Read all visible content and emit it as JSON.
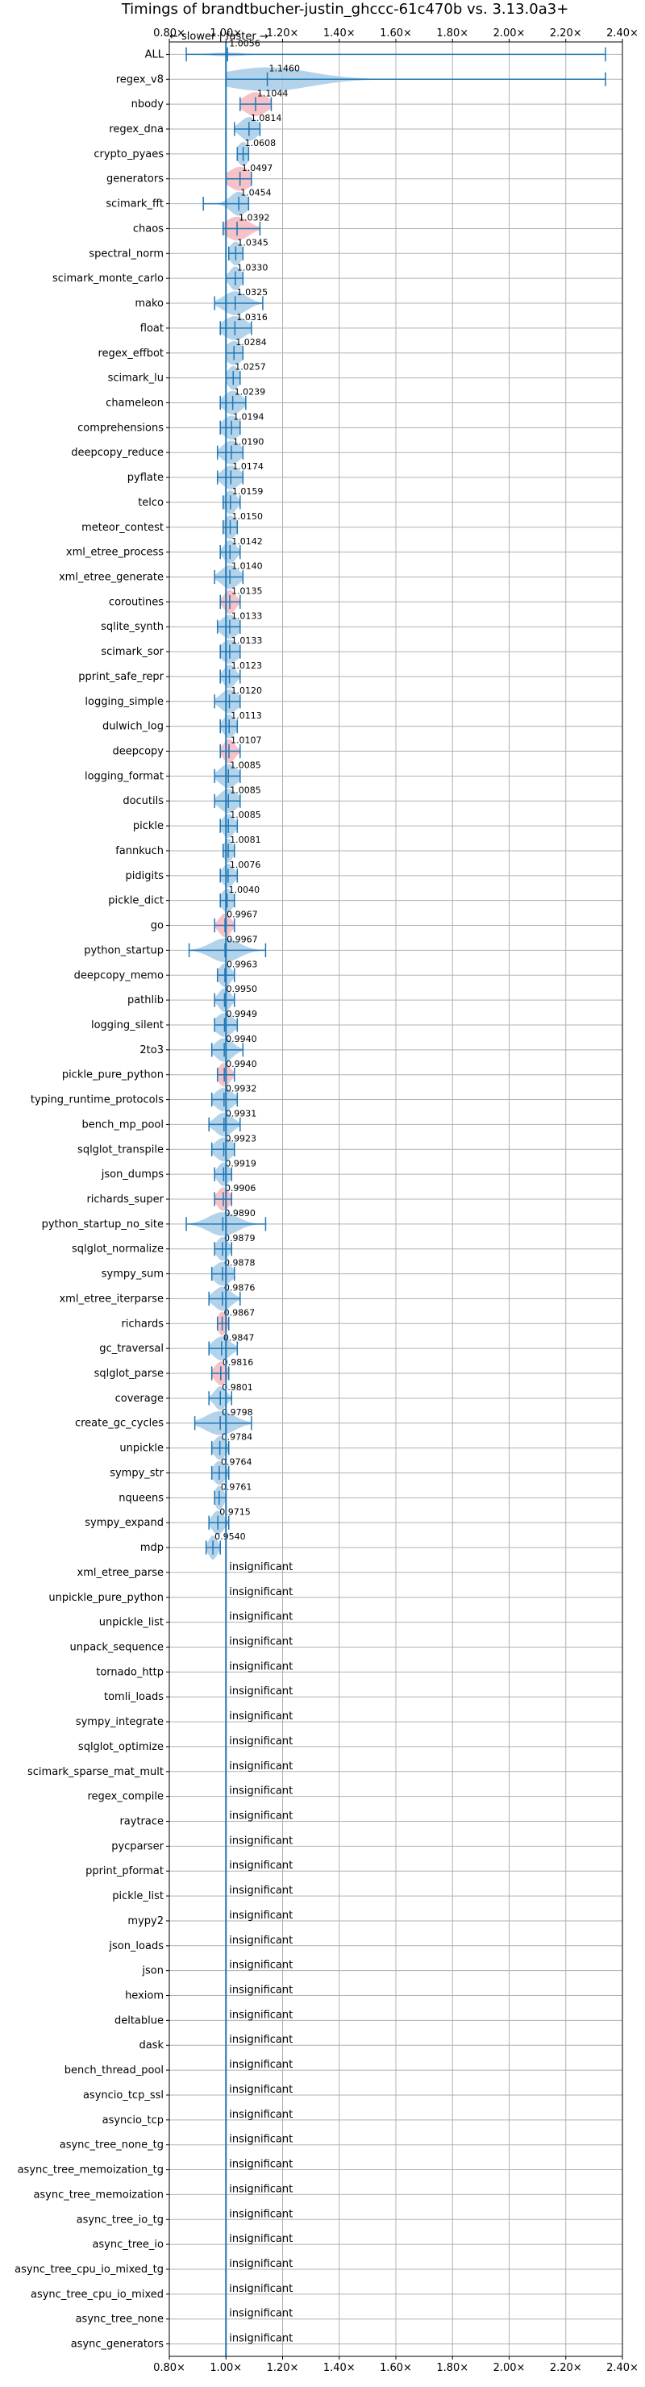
{
  "chart_data": {
    "type": "violin",
    "title": "Timings of brandtbucher-justin_ghccc-61c470b vs. 3.13.0a3+",
    "direction_label": "← slower | faster →",
    "xlim": [
      0.8,
      2.4
    ],
    "xticks": [
      "0.80×",
      "1.00×",
      "1.20×",
      "1.40×",
      "1.60×",
      "1.80×",
      "2.00×",
      "2.20×",
      "2.40×"
    ],
    "xtick_values": [
      0.8,
      1.0,
      1.2,
      1.4,
      1.6,
      1.8,
      2.0,
      2.2,
      2.4
    ],
    "grid": true,
    "colors": {
      "faster": "#1f77b4",
      "slower": "#ff9896",
      "violin_fill": "#a6cbe8",
      "slow_fill": "#f4b6bd",
      "grid": "#b0b0b0"
    },
    "insignificant_text": "insignificant",
    "benchmarks": [
      {
        "name": "ALL",
        "value": 1.0056,
        "label": "1.0056",
        "lo": 0.86,
        "hi": 2.34,
        "w": 0.08,
        "spread": 0.05,
        "color": "blue"
      },
      {
        "name": "regex_v8",
        "value": 1.146,
        "label": "1.1460",
        "lo": 1.0,
        "hi": 2.34,
        "w": 0.6,
        "spread": 0.15,
        "color": "blue"
      },
      {
        "name": "nbody",
        "value": 1.1044,
        "label": "1.1044",
        "lo": 1.05,
        "hi": 1.16,
        "w": 0.7,
        "spread": 0.04,
        "color": "red"
      },
      {
        "name": "regex_dna",
        "value": 1.0814,
        "label": "1.0814",
        "lo": 1.03,
        "hi": 1.12,
        "w": 0.5,
        "spread": 0.03,
        "color": "blue"
      },
      {
        "name": "crypto_pyaes",
        "value": 1.0608,
        "label": "1.0608",
        "lo": 1.04,
        "hi": 1.08,
        "w": 0.5,
        "spread": 0.02,
        "color": "blue"
      },
      {
        "name": "generators",
        "value": 1.0497,
        "label": "1.0497",
        "lo": 1.0,
        "hi": 1.09,
        "w": 0.8,
        "spread": 0.04,
        "color": "red"
      },
      {
        "name": "scimark_fft",
        "value": 1.0454,
        "label": "1.0454",
        "lo": 0.92,
        "hi": 1.08,
        "w": 0.5,
        "spread": 0.03,
        "color": "blue"
      },
      {
        "name": "chaos",
        "value": 1.0392,
        "label": "1.0392",
        "lo": 0.99,
        "hi": 1.12,
        "w": 0.8,
        "spread": 0.04,
        "color": "red"
      },
      {
        "name": "spectral_norm",
        "value": 1.0345,
        "label": "1.0345",
        "lo": 1.01,
        "hi": 1.06,
        "w": 0.5,
        "spread": 0.02,
        "color": "blue"
      },
      {
        "name": "scimark_monte_carlo",
        "value": 1.033,
        "label": "1.0330",
        "lo": 1.0,
        "hi": 1.06,
        "w": 0.5,
        "spread": 0.02,
        "color": "blue"
      },
      {
        "name": "mako",
        "value": 1.0325,
        "label": "1.0325",
        "lo": 0.96,
        "hi": 1.13,
        "w": 0.5,
        "spread": 0.04,
        "color": "blue"
      },
      {
        "name": "float",
        "value": 1.0316,
        "label": "1.0316",
        "lo": 0.98,
        "hi": 1.09,
        "w": 0.6,
        "spread": 0.04,
        "color": "blue"
      },
      {
        "name": "regex_effbot",
        "value": 1.0284,
        "label": "1.0284",
        "lo": 1.0,
        "hi": 1.06,
        "w": 0.6,
        "spread": 0.03,
        "color": "blue"
      },
      {
        "name": "scimark_lu",
        "value": 1.0257,
        "label": "1.0257",
        "lo": 1.0,
        "hi": 1.05,
        "w": 0.5,
        "spread": 0.02,
        "color": "blue"
      },
      {
        "name": "chameleon",
        "value": 1.0239,
        "label": "1.0239",
        "lo": 0.98,
        "hi": 1.07,
        "w": 0.6,
        "spread": 0.03,
        "color": "blue"
      },
      {
        "name": "comprehensions",
        "value": 1.0194,
        "label": "1.0194",
        "lo": 0.98,
        "hi": 1.05,
        "w": 0.6,
        "spread": 0.03,
        "color": "blue"
      },
      {
        "name": "deepcopy_reduce",
        "value": 1.019,
        "label": "1.0190",
        "lo": 0.97,
        "hi": 1.06,
        "w": 0.6,
        "spread": 0.03,
        "color": "blue"
      },
      {
        "name": "pyflate",
        "value": 1.0174,
        "label": "1.0174",
        "lo": 0.97,
        "hi": 1.06,
        "w": 0.6,
        "spread": 0.03,
        "color": "blue"
      },
      {
        "name": "telco",
        "value": 1.0159,
        "label": "1.0159",
        "lo": 0.99,
        "hi": 1.05,
        "w": 0.5,
        "spread": 0.02,
        "color": "blue"
      },
      {
        "name": "meteor_contest",
        "value": 1.015,
        "label": "1.0150",
        "lo": 0.99,
        "hi": 1.04,
        "w": 0.5,
        "spread": 0.02,
        "color": "blue"
      },
      {
        "name": "xml_etree_process",
        "value": 1.0142,
        "label": "1.0142",
        "lo": 0.98,
        "hi": 1.05,
        "w": 0.5,
        "spread": 0.02,
        "color": "blue"
      },
      {
        "name": "xml_etree_generate",
        "value": 1.014,
        "label": "1.0140",
        "lo": 0.96,
        "hi": 1.06,
        "w": 0.6,
        "spread": 0.03,
        "color": "blue"
      },
      {
        "name": "coroutines",
        "value": 1.0135,
        "label": "1.0135",
        "lo": 0.98,
        "hi": 1.05,
        "w": 0.7,
        "spread": 0.02,
        "color": "red"
      },
      {
        "name": "sqlite_synth",
        "value": 1.0133,
        "label": "1.0133",
        "lo": 0.97,
        "hi": 1.05,
        "w": 0.6,
        "spread": 0.03,
        "color": "blue"
      },
      {
        "name": "scimark_sor",
        "value": 1.0133,
        "label": "1.0133",
        "lo": 0.98,
        "hi": 1.05,
        "w": 0.6,
        "spread": 0.03,
        "color": "blue"
      },
      {
        "name": "pprint_safe_repr",
        "value": 1.0123,
        "label": "1.0123",
        "lo": 0.98,
        "hi": 1.05,
        "w": 0.5,
        "spread": 0.02,
        "color": "blue"
      },
      {
        "name": "logging_simple",
        "value": 1.012,
        "label": "1.0120",
        "lo": 0.96,
        "hi": 1.05,
        "w": 0.6,
        "spread": 0.03,
        "color": "blue"
      },
      {
        "name": "dulwich_log",
        "value": 1.0113,
        "label": "1.0113",
        "lo": 0.98,
        "hi": 1.04,
        "w": 0.5,
        "spread": 0.02,
        "color": "blue"
      },
      {
        "name": "deepcopy",
        "value": 1.0107,
        "label": "1.0107",
        "lo": 0.98,
        "hi": 1.05,
        "w": 0.7,
        "spread": 0.02,
        "color": "red"
      },
      {
        "name": "logging_format",
        "value": 1.0085,
        "label": "1.0085",
        "lo": 0.96,
        "hi": 1.05,
        "w": 0.6,
        "spread": 0.03,
        "color": "blue"
      },
      {
        "name": "docutils",
        "value": 1.0085,
        "label": "1.0085",
        "lo": 0.96,
        "hi": 1.05,
        "w": 0.6,
        "spread": 0.03,
        "color": "blue"
      },
      {
        "name": "pickle",
        "value": 1.0085,
        "label": "1.0085",
        "lo": 0.98,
        "hi": 1.04,
        "w": 0.5,
        "spread": 0.02,
        "color": "blue"
      },
      {
        "name": "fannkuch",
        "value": 1.0081,
        "label": "1.0081",
        "lo": 0.99,
        "hi": 1.03,
        "w": 0.5,
        "spread": 0.015,
        "color": "blue"
      },
      {
        "name": "pidigits",
        "value": 1.0076,
        "label": "1.0076",
        "lo": 0.98,
        "hi": 1.04,
        "w": 0.5,
        "spread": 0.02,
        "color": "blue"
      },
      {
        "name": "pickle_dict",
        "value": 1.004,
        "label": "1.0040",
        "lo": 0.98,
        "hi": 1.03,
        "w": 0.5,
        "spread": 0.02,
        "color": "blue"
      },
      {
        "name": "go",
        "value": 0.9967,
        "label": "0.9967",
        "lo": 0.96,
        "hi": 1.03,
        "w": 0.7,
        "spread": 0.02,
        "color": "red"
      },
      {
        "name": "python_startup",
        "value": 0.9967,
        "label": "0.9967",
        "lo": 0.87,
        "hi": 1.14,
        "w": 0.8,
        "spread": 0.05,
        "color": "blue"
      },
      {
        "name": "deepcopy_memo",
        "value": 0.9963,
        "label": "0.9963",
        "lo": 0.97,
        "hi": 1.03,
        "w": 0.5,
        "spread": 0.02,
        "color": "blue"
      },
      {
        "name": "pathlib",
        "value": 0.995,
        "label": "0.9950",
        "lo": 0.96,
        "hi": 1.03,
        "w": 0.5,
        "spread": 0.02,
        "color": "blue"
      },
      {
        "name": "logging_silent",
        "value": 0.9949,
        "label": "0.9949",
        "lo": 0.96,
        "hi": 1.04,
        "w": 0.6,
        "spread": 0.03,
        "color": "blue"
      },
      {
        "name": "2to3",
        "value": 0.994,
        "label": "0.9940",
        "lo": 0.95,
        "hi": 1.06,
        "w": 0.6,
        "spread": 0.03,
        "color": "blue"
      },
      {
        "name": "pickle_pure_python",
        "value": 0.994,
        "label": "0.9940",
        "lo": 0.97,
        "hi": 1.03,
        "w": 0.7,
        "spread": 0.02,
        "color": "red"
      },
      {
        "name": "typing_runtime_protocols",
        "value": 0.9932,
        "label": "0.9932",
        "lo": 0.95,
        "hi": 1.04,
        "w": 0.6,
        "spread": 0.03,
        "color": "blue"
      },
      {
        "name": "bench_mp_pool",
        "value": 0.9931,
        "label": "0.9931",
        "lo": 0.94,
        "hi": 1.05,
        "w": 0.6,
        "spread": 0.03,
        "color": "blue"
      },
      {
        "name": "sqlglot_transpile",
        "value": 0.9923,
        "label": "0.9923",
        "lo": 0.95,
        "hi": 1.03,
        "w": 0.6,
        "spread": 0.03,
        "color": "blue"
      },
      {
        "name": "json_dumps",
        "value": 0.9919,
        "label": "0.9919",
        "lo": 0.96,
        "hi": 1.02,
        "w": 0.5,
        "spread": 0.02,
        "color": "blue"
      },
      {
        "name": "richards_super",
        "value": 0.9906,
        "label": "0.9906",
        "lo": 0.96,
        "hi": 1.02,
        "w": 0.7,
        "spread": 0.02,
        "color": "red"
      },
      {
        "name": "python_startup_no_site",
        "value": 0.989,
        "label": "0.9890",
        "lo": 0.86,
        "hi": 1.14,
        "w": 0.8,
        "spread": 0.05,
        "color": "blue"
      },
      {
        "name": "sqlglot_normalize",
        "value": 0.9879,
        "label": "0.9879",
        "lo": 0.96,
        "hi": 1.02,
        "w": 0.5,
        "spread": 0.02,
        "color": "blue"
      },
      {
        "name": "sympy_sum",
        "value": 0.9878,
        "label": "0.9878",
        "lo": 0.95,
        "hi": 1.03,
        "w": 0.6,
        "spread": 0.03,
        "color": "blue"
      },
      {
        "name": "xml_etree_iterparse",
        "value": 0.9876,
        "label": "0.9876",
        "lo": 0.94,
        "hi": 1.05,
        "w": 0.6,
        "spread": 0.03,
        "color": "blue"
      },
      {
        "name": "richards",
        "value": 0.9867,
        "label": "0.9867",
        "lo": 0.97,
        "hi": 1.01,
        "w": 0.6,
        "spread": 0.015,
        "color": "red"
      },
      {
        "name": "gc_traversal",
        "value": 0.9847,
        "label": "0.9847",
        "lo": 0.94,
        "hi": 1.04,
        "w": 0.6,
        "spread": 0.03,
        "color": "blue"
      },
      {
        "name": "sqlglot_parse",
        "value": 0.9816,
        "label": "0.9816",
        "lo": 0.95,
        "hi": 1.01,
        "w": 0.7,
        "spread": 0.02,
        "color": "red"
      },
      {
        "name": "coverage",
        "value": 0.9801,
        "label": "0.9801",
        "lo": 0.94,
        "hi": 1.02,
        "w": 0.5,
        "spread": 0.02,
        "color": "blue"
      },
      {
        "name": "create_gc_cycles",
        "value": 0.9798,
        "label": "0.9798",
        "lo": 0.89,
        "hi": 1.09,
        "w": 0.8,
        "spread": 0.05,
        "color": "blue"
      },
      {
        "name": "unpickle",
        "value": 0.9784,
        "label": "0.9784",
        "lo": 0.95,
        "hi": 1.01,
        "w": 0.5,
        "spread": 0.02,
        "color": "blue"
      },
      {
        "name": "sympy_str",
        "value": 0.9764,
        "label": "0.9764",
        "lo": 0.95,
        "hi": 1.01,
        "w": 0.6,
        "spread": 0.02,
        "color": "blue"
      },
      {
        "name": "nqueens",
        "value": 0.9761,
        "label": "0.9761",
        "lo": 0.96,
        "hi": 1.0,
        "w": 0.5,
        "spread": 0.015,
        "color": "blue"
      },
      {
        "name": "sympy_expand",
        "value": 0.9715,
        "label": "0.9715",
        "lo": 0.94,
        "hi": 1.01,
        "w": 0.6,
        "spread": 0.02,
        "color": "blue"
      },
      {
        "name": "mdp",
        "value": 0.954,
        "label": "0.9540",
        "lo": 0.93,
        "hi": 0.98,
        "w": 0.6,
        "spread": 0.015,
        "color": "blue"
      },
      {
        "name": "xml_etree_parse",
        "insignificant": true
      },
      {
        "name": "unpickle_pure_python",
        "insignificant": true
      },
      {
        "name": "unpickle_list",
        "insignificant": true
      },
      {
        "name": "unpack_sequence",
        "insignificant": true
      },
      {
        "name": "tornado_http",
        "insignificant": true
      },
      {
        "name": "tomli_loads",
        "insignificant": true
      },
      {
        "name": "sympy_integrate",
        "insignificant": true
      },
      {
        "name": "sqlglot_optimize",
        "insignificant": true
      },
      {
        "name": "scimark_sparse_mat_mult",
        "insignificant": true
      },
      {
        "name": "regex_compile",
        "insignificant": true
      },
      {
        "name": "raytrace",
        "insignificant": true
      },
      {
        "name": "pycparser",
        "insignificant": true
      },
      {
        "name": "pprint_pformat",
        "insignificant": true
      },
      {
        "name": "pickle_list",
        "insignificant": true
      },
      {
        "name": "mypy2",
        "insignificant": true
      },
      {
        "name": "json_loads",
        "insignificant": true
      },
      {
        "name": "json",
        "insignificant": true
      },
      {
        "name": "hexiom",
        "insignificant": true
      },
      {
        "name": "deltablue",
        "insignificant": true
      },
      {
        "name": "dask",
        "insignificant": true
      },
      {
        "name": "bench_thread_pool",
        "insignificant": true
      },
      {
        "name": "asyncio_tcp_ssl",
        "insignificant": true
      },
      {
        "name": "asyncio_tcp",
        "insignificant": true
      },
      {
        "name": "async_tree_none_tg",
        "insignificant": true
      },
      {
        "name": "async_tree_memoization_tg",
        "insignificant": true
      },
      {
        "name": "async_tree_memoization",
        "insignificant": true
      },
      {
        "name": "async_tree_io_tg",
        "insignificant": true
      },
      {
        "name": "async_tree_io",
        "insignificant": true
      },
      {
        "name": "async_tree_cpu_io_mixed_tg",
        "insignificant": true
      },
      {
        "name": "async_tree_cpu_io_mixed",
        "insignificant": true
      },
      {
        "name": "async_tree_none",
        "insignificant": true
      },
      {
        "name": "async_generators",
        "insignificant": true
      }
    ]
  }
}
